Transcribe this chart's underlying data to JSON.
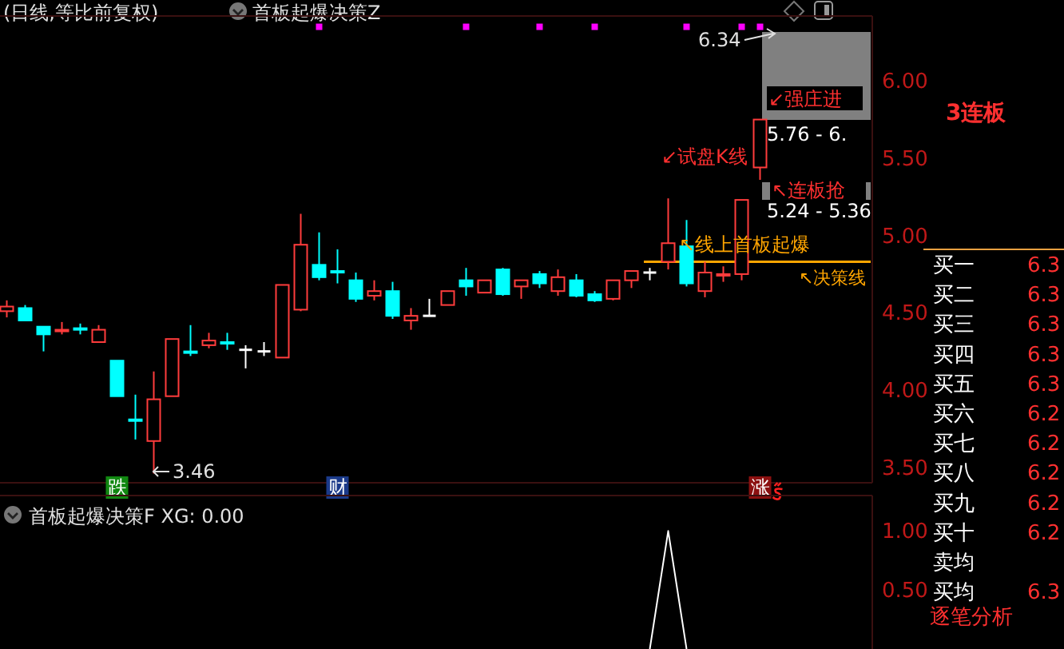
{
  "chart_data": [
    {
      "type": "candlestick",
      "title": "(日线,等比前复权)",
      "subtitle": "首板起爆决策Z",
      "categories": [
        null,
        null,
        null,
        null,
        null,
        null,
        null,
        null,
        null,
        null,
        null,
        null,
        null,
        null,
        null,
        null,
        null,
        null,
        null,
        null,
        null,
        null,
        null,
        null,
        null,
        null,
        null,
        null,
        null,
        null,
        null,
        null,
        null,
        null,
        null,
        null,
        null,
        null,
        null,
        null,
        null,
        null
      ],
      "ohlc": [
        [
          4.51,
          4.58,
          4.47,
          4.54
        ],
        [
          4.53,
          4.55,
          4.45,
          4.45
        ],
        [
          4.41,
          4.41,
          4.25,
          4.36
        ],
        [
          4.38,
          4.44,
          4.36,
          4.39
        ],
        [
          4.4,
          4.43,
          4.36,
          4.39
        ],
        [
          4.31,
          4.42,
          4.31,
          4.39
        ],
        [
          4.19,
          4.19,
          3.96,
          3.96
        ],
        [
          3.81,
          3.97,
          3.68,
          3.8
        ],
        [
          3.67,
          4.12,
          3.46,
          3.94
        ],
        [
          3.96,
          4.33,
          3.96,
          4.33
        ],
        [
          4.25,
          4.42,
          4.22,
          4.24
        ],
        [
          4.29,
          4.37,
          4.27,
          4.32
        ],
        [
          4.31,
          4.37,
          4.26,
          4.3
        ],
        [
          4.26,
          4.29,
          4.14,
          4.26
        ],
        [
          4.25,
          4.31,
          4.22,
          4.25
        ],
        [
          4.21,
          4.68,
          4.21,
          4.68
        ],
        [
          4.52,
          5.14,
          4.51,
          4.94
        ],
        [
          4.81,
          5.02,
          4.71,
          4.73
        ],
        [
          4.77,
          4.91,
          4.69,
          4.76
        ],
        [
          4.71,
          4.76,
          4.57,
          4.59
        ],
        [
          4.61,
          4.71,
          4.58,
          4.64
        ],
        [
          4.64,
          4.7,
          4.46,
          4.48
        ],
        [
          4.45,
          4.53,
          4.39,
          4.48
        ],
        [
          4.48,
          4.59,
          4.48,
          4.48
        ],
        [
          4.55,
          4.64,
          4.55,
          4.64
        ],
        [
          4.71,
          4.79,
          4.61,
          4.67
        ],
        [
          4.63,
          4.71,
          4.63,
          4.71
        ],
        [
          4.78,
          4.79,
          4.61,
          4.62
        ],
        [
          4.67,
          4.71,
          4.59,
          4.71
        ],
        [
          4.75,
          4.77,
          4.66,
          4.69
        ],
        [
          4.64,
          4.78,
          4.61,
          4.73
        ],
        [
          4.71,
          4.75,
          4.6,
          4.61
        ],
        [
          4.62,
          4.64,
          4.57,
          4.58
        ],
        [
          4.59,
          4.71,
          4.58,
          4.71
        ],
        [
          4.71,
          4.77,
          4.66,
          4.77
        ],
        [
          4.76,
          4.79,
          4.71,
          4.76
        ],
        [
          4.83,
          5.24,
          4.78,
          4.95
        ],
        [
          4.93,
          5.1,
          4.67,
          4.69
        ],
        [
          4.64,
          4.83,
          4.6,
          4.76
        ],
        [
          4.74,
          4.8,
          4.7,
          4.75
        ],
        [
          4.75,
          5.23,
          4.71,
          5.23
        ],
        [
          5.44,
          5.75,
          5.36,
          5.75
        ]
      ],
      "series": [
        {
          "type": "scatter",
          "marker": "square",
          "color": "#ff00ff",
          "values": [
            null,
            null,
            null,
            null,
            null,
            null,
            null,
            null,
            null,
            null,
            null,
            null,
            null,
            null,
            null,
            null,
            null,
            6.35,
            null,
            null,
            null,
            null,
            null,
            null,
            null,
            6.35,
            null,
            null,
            null,
            6.35,
            null,
            null,
            6.35,
            null,
            null,
            null,
            null,
            6.35,
            null,
            null,
            6.35,
            6.35
          ]
        }
      ],
      "ylim": [
        3.4,
        6.42
      ],
      "yticks": [
        {
          "value": 3.5,
          "label": "3.50"
        },
        {
          "value": 4.0,
          "label": "4.00"
        },
        {
          "value": 4.5,
          "label": "4.50"
        },
        {
          "value": 5.0,
          "label": "5.00"
        },
        {
          "value": 5.5,
          "label": "5.50"
        },
        {
          "value": 6.0,
          "label": "6.00"
        }
      ],
      "ref_lines": [
        {
          "axis": "y",
          "value": 4.83,
          "label": "↖决策线",
          "color": "#ffa500"
        }
      ],
      "annotations": [
        "6.34",
        "3.46",
        "↙试盘K线",
        "↙强庄进",
        "↖连板抢",
        "↖线上首板起爆",
        "跌",
        "财",
        "涨",
        "5.76 - 6.",
        "5.24 - 5.36"
      ]
    },
    {
      "type": "line",
      "title": "首板起爆决策F  XG: 0.00",
      "categories": [
        null,
        null,
        null,
        null,
        null,
        null,
        null,
        null,
        null,
        null,
        null,
        null,
        null,
        null,
        null,
        null,
        null,
        null,
        null,
        null,
        null,
        null,
        null,
        null,
        null,
        null,
        null,
        null,
        null,
        null,
        null,
        null,
        null,
        null,
        null,
        null,
        null,
        null,
        null,
        null,
        null,
        null
      ],
      "series": [
        {
          "color": "#ffffff",
          "values": [
            null,
            null,
            null,
            null,
            null,
            null,
            null,
            null,
            null,
            null,
            null,
            null,
            null,
            null,
            null,
            null,
            null,
            null,
            null,
            null,
            null,
            null,
            null,
            null,
            null,
            null,
            null,
            null,
            null,
            null,
            null,
            null,
            null,
            null,
            null,
            0,
            1,
            0,
            null,
            null,
            null,
            null
          ]
        }
      ],
      "ylim": [
        0,
        1.3
      ],
      "yticks": [
        {
          "value": 0.5,
          "label": "0.50"
        },
        {
          "value": 1.0,
          "label": "1.00"
        }
      ]
    },
    {
      "type": "other",
      "title": "3连板",
      "categories": [
        "买一",
        "买二",
        "买三",
        "买四",
        "买五",
        "买六",
        "买七",
        "买八",
        "买九",
        "买十",
        "卖均",
        "买均"
      ],
      "value_labels": [
        "6.3",
        "6.3",
        "6.3",
        "6.3",
        "6.3",
        "6.2",
        "6.2",
        "6.2",
        "6.2",
        "6.2",
        null,
        "6.3"
      ],
      "annotations": [
        "逐笔分析"
      ]
    }
  ]
}
